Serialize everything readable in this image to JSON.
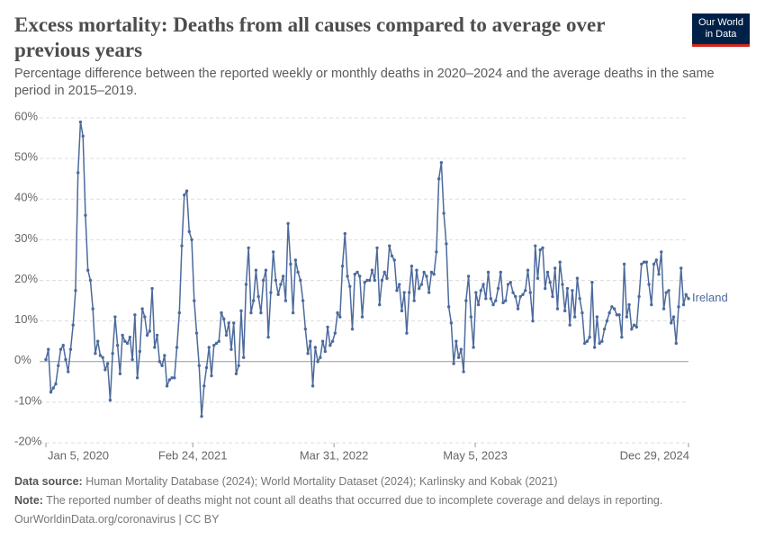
{
  "logo": "Our World in Data",
  "chart_data": {
    "type": "line",
    "title": "Excess mortality: Deaths from all causes compared to average over previous years",
    "subtitle": "Percentage difference between the reported weekly or monthly deaths in 2020–2024 and the average deaths in the same period in 2015–2019.",
    "x": [
      "2020-01-05",
      "2020-01-12",
      "2020-01-19",
      "2020-01-26",
      "2020-02-02",
      "2020-02-09",
      "2020-02-16",
      "2020-02-23",
      "2020-03-01",
      "2020-03-08",
      "2020-03-15",
      "2020-03-22",
      "2020-03-29",
      "2020-04-05",
      "2020-04-12",
      "2020-04-19",
      "2020-04-26",
      "2020-05-03",
      "2020-05-10",
      "2020-05-17",
      "2020-05-24",
      "2020-05-31",
      "2020-06-07",
      "2020-06-14",
      "2020-06-21",
      "2020-06-28",
      "2020-07-05",
      "2020-07-12",
      "2020-07-19",
      "2020-07-26",
      "2020-08-02",
      "2020-08-09",
      "2020-08-16",
      "2020-08-23",
      "2020-08-30",
      "2020-09-06",
      "2020-09-13",
      "2020-09-20",
      "2020-09-27",
      "2020-10-04",
      "2020-10-11",
      "2020-10-18",
      "2020-10-25",
      "2020-11-01",
      "2020-11-08",
      "2020-11-15",
      "2020-11-22",
      "2020-11-29",
      "2020-12-06",
      "2020-12-13",
      "2020-12-20",
      "2020-12-27",
      "2021-01-03",
      "2021-01-10",
      "2021-01-17",
      "2021-01-24",
      "2021-01-31",
      "2021-02-07",
      "2021-02-14",
      "2021-02-21",
      "2021-02-28",
      "2021-03-07",
      "2021-03-14",
      "2021-03-21",
      "2021-03-28",
      "2021-04-04",
      "2021-04-11",
      "2021-04-18",
      "2021-04-25",
      "2021-05-02",
      "2021-05-09",
      "2021-05-16",
      "2021-05-23",
      "2021-05-30",
      "2021-06-06",
      "2021-06-13",
      "2021-06-20",
      "2021-06-27",
      "2021-07-04",
      "2021-07-11",
      "2021-07-18",
      "2021-07-25",
      "2021-08-01",
      "2021-08-08",
      "2021-08-15",
      "2021-08-22",
      "2021-08-29",
      "2021-09-05",
      "2021-09-12",
      "2021-09-19",
      "2021-09-26",
      "2021-10-03",
      "2021-10-10",
      "2021-10-17",
      "2021-10-24",
      "2021-10-31",
      "2021-11-07",
      "2021-11-14",
      "2021-11-21",
      "2021-11-28",
      "2021-12-05",
      "2021-12-12",
      "2021-12-19",
      "2021-12-26",
      "2022-01-02",
      "2022-01-09",
      "2022-01-16",
      "2022-01-23",
      "2022-01-30",
      "2022-02-06",
      "2022-02-13",
      "2022-02-20",
      "2022-02-27",
      "2022-03-06",
      "2022-03-13",
      "2022-03-20",
      "2022-03-27",
      "2022-04-03",
      "2022-04-10",
      "2022-04-17",
      "2022-04-24",
      "2022-05-01",
      "2022-05-08",
      "2022-05-15",
      "2022-05-22",
      "2022-05-29",
      "2022-06-05",
      "2022-06-12",
      "2022-06-19",
      "2022-06-26",
      "2022-07-03",
      "2022-07-10",
      "2022-07-17",
      "2022-07-24",
      "2022-07-31",
      "2022-08-07",
      "2022-08-14",
      "2022-08-21",
      "2022-08-28",
      "2022-09-04",
      "2022-09-11",
      "2022-09-18",
      "2022-09-25",
      "2022-10-02",
      "2022-10-09",
      "2022-10-16",
      "2022-10-23",
      "2022-10-30",
      "2022-11-06",
      "2022-11-13",
      "2022-11-20",
      "2022-11-27",
      "2022-12-04",
      "2022-12-11",
      "2022-12-18",
      "2022-12-25",
      "2023-01-01",
      "2023-01-08",
      "2023-01-15",
      "2023-01-22",
      "2023-01-29",
      "2023-02-05",
      "2023-02-12",
      "2023-02-19",
      "2023-02-26",
      "2023-03-05",
      "2023-03-12",
      "2023-03-19",
      "2023-03-26",
      "2023-04-02",
      "2023-04-09",
      "2023-04-16",
      "2023-04-23",
      "2023-04-30",
      "2023-05-07",
      "2023-05-14",
      "2023-05-21",
      "2023-05-28",
      "2023-06-04",
      "2023-06-11",
      "2023-06-18",
      "2023-06-25",
      "2023-07-02",
      "2023-07-09",
      "2023-07-16",
      "2023-07-23",
      "2023-07-30",
      "2023-08-06",
      "2023-08-13",
      "2023-08-20",
      "2023-08-27",
      "2023-09-03",
      "2023-09-10",
      "2023-09-17",
      "2023-09-24",
      "2023-10-01",
      "2023-10-08",
      "2023-10-15",
      "2023-10-22",
      "2023-10-29",
      "2023-11-05",
      "2023-11-12",
      "2023-11-19",
      "2023-11-26",
      "2023-12-03",
      "2023-12-10",
      "2023-12-17",
      "2023-12-24",
      "2023-12-31",
      "2024-01-07",
      "2024-01-14",
      "2024-01-21",
      "2024-01-28",
      "2024-02-04",
      "2024-02-11",
      "2024-02-18",
      "2024-02-25",
      "2024-03-03",
      "2024-03-10",
      "2024-03-17",
      "2024-03-24",
      "2024-03-31",
      "2024-04-07",
      "2024-04-14",
      "2024-04-21",
      "2024-04-28",
      "2024-05-05",
      "2024-05-12",
      "2024-05-19",
      "2024-05-26",
      "2024-06-02",
      "2024-06-09",
      "2024-06-16",
      "2024-06-23",
      "2024-06-30",
      "2024-07-07",
      "2024-07-14",
      "2024-07-21",
      "2024-07-28",
      "2024-08-04",
      "2024-08-11",
      "2024-08-18",
      "2024-08-25",
      "2024-09-01",
      "2024-09-08",
      "2024-09-15",
      "2024-09-22",
      "2024-09-29",
      "2024-10-06",
      "2024-10-13",
      "2024-10-20",
      "2024-10-27",
      "2024-11-03",
      "2024-11-10",
      "2024-11-17",
      "2024-11-24",
      "2024-12-01",
      "2024-12-08",
      "2024-12-15",
      "2024-12-22",
      "2024-12-29"
    ],
    "series": [
      {
        "name": "Ireland",
        "color": "#4c6a9c",
        "values": [
          0.5,
          3,
          -7.5,
          -6.5,
          -5.5,
          -1,
          3,
          4,
          0.5,
          -2.5,
          3,
          9,
          17.5,
          46.5,
          59,
          55.5,
          36,
          22.5,
          20,
          13,
          2,
          5,
          1.5,
          1,
          -2,
          -0.5,
          -9.5,
          2,
          11,
          4,
          -3,
          6.5,
          5,
          4.5,
          6,
          0.5,
          11.5,
          -4,
          2.5,
          13,
          11,
          6.5,
          7.5,
          18,
          3.5,
          6.5,
          0,
          -1,
          1.5,
          -6,
          -4.5,
          -4,
          -4,
          3.5,
          12,
          28.5,
          41,
          42,
          32,
          30,
          15,
          7,
          -1,
          -13.5,
          -6,
          -1.5,
          3.5,
          -3.5,
          4,
          4.5,
          5,
          12,
          10.5,
          6.5,
          9.5,
          3,
          9.5,
          -3,
          -1,
          12.5,
          1,
          19,
          28,
          12,
          15,
          22.5,
          16,
          12,
          20,
          22.5,
          6,
          17,
          27,
          20,
          16.5,
          19,
          21,
          15,
          34,
          24,
          12,
          25,
          22,
          20,
          15,
          8,
          2,
          5,
          -6,
          3.5,
          0,
          1,
          5,
          2.5,
          8.5,
          4,
          5,
          7,
          12,
          11,
          23.5,
          31.5,
          21,
          18.5,
          8,
          21.5,
          22,
          21,
          11,
          19.5,
          20,
          20,
          22.5,
          20,
          28,
          14,
          20,
          22,
          20.5,
          28.5,
          26,
          25,
          17.5,
          19,
          12.5,
          17,
          7,
          17,
          23.5,
          15,
          22.5,
          18,
          19,
          22,
          21,
          17,
          22,
          21.5,
          27,
          45,
          49,
          36.5,
          29,
          13.5,
          9.5,
          -0.5,
          5,
          1,
          3,
          -2.5,
          15,
          21,
          11,
          3.5,
          17,
          14,
          17.5,
          19,
          15.5,
          22,
          15.5,
          14,
          15,
          18,
          22,
          14.5,
          15,
          19,
          19.5,
          17,
          16,
          13,
          16,
          16.5,
          17.5,
          22.5,
          17,
          10,
          28.5,
          20.5,
          27.5,
          28,
          18,
          22,
          19.5,
          16,
          23,
          13,
          24.5,
          19,
          12.5,
          18,
          9,
          17.5,
          11,
          20.5,
          15.5,
          12,
          4.5,
          5,
          6,
          19.5,
          3.5,
          11,
          4.5,
          5,
          8,
          10,
          12,
          13.5,
          13,
          11.5,
          11.5,
          6,
          24,
          11,
          14,
          8,
          9,
          8.5,
          16,
          24,
          24.5,
          24.5,
          19,
          14,
          24,
          25,
          21.5,
          27,
          13,
          17,
          17.5,
          9.5,
          11,
          4.5,
          13.5,
          23,
          14,
          16.5,
          15.5
        ]
      }
    ],
    "xlim": [
      "2020-01-05",
      "2024-12-29"
    ],
    "xticks": [
      {
        "value": "2020-01-05",
        "label": "Jan 5, 2020"
      },
      {
        "value": "2021-02-24",
        "label": "Feb 24, 2021"
      },
      {
        "value": "2022-03-31",
        "label": "Mar 31, 2022"
      },
      {
        "value": "2023-05-05",
        "label": "May 5, 2023"
      },
      {
        "value": "2024-12-29",
        "label": "Dec 29, 2024"
      }
    ],
    "ylim": [
      -20,
      60
    ],
    "yticks": [
      {
        "value": -20,
        "label": "-20%"
      },
      {
        "value": -10,
        "label": "-10%"
      },
      {
        "value": 0,
        "label": "0%"
      },
      {
        "value": 10,
        "label": "10%"
      },
      {
        "value": 20,
        "label": "20%"
      },
      {
        "value": 30,
        "label": "30%"
      },
      {
        "value": 40,
        "label": "40%"
      },
      {
        "value": 50,
        "label": "50%"
      },
      {
        "value": 60,
        "label": "60%"
      }
    ],
    "grid": true
  },
  "footer": {
    "source_label": "Data source:",
    "source_text": "Human Mortality Database (2024); World Mortality Dataset (2024); Karlinsky and Kobak (2021)",
    "note_label": "Note:",
    "note_text": "The reported number of deaths might not count all deaths that occurred due to incomplete coverage and delays in reporting.",
    "url": "OurWorldinData.org/coronavirus | CC BY"
  }
}
